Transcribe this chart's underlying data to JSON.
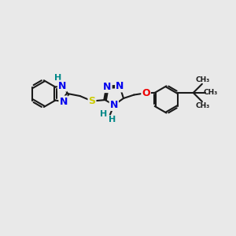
{
  "background_color": "#e9e9e9",
  "bond_color": "#1a1a1a",
  "bond_lw": 1.5,
  "dbo": 0.055,
  "atom_colors": {
    "N": "#0000ee",
    "S": "#cccc00",
    "O": "#ee0000",
    "H": "#008888",
    "C": "#1a1a1a"
  },
  "fs": 9,
  "fs_small": 8,
  "fig_w": 3.0,
  "fig_h": 3.0,
  "dpi": 100,
  "xlim": [
    0,
    10
  ],
  "ylim": [
    0,
    10
  ]
}
